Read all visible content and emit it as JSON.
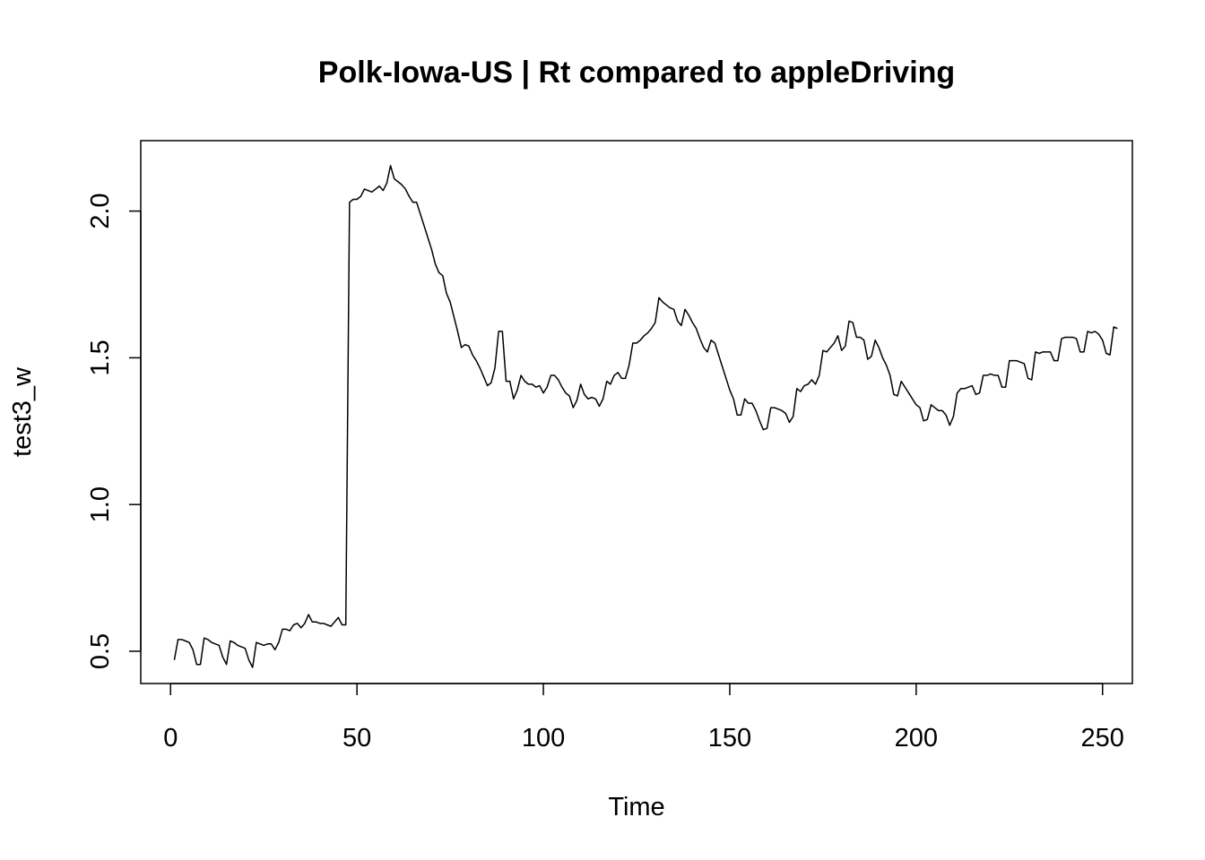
{
  "chart_data": {
    "type": "line",
    "title": "Polk-Iowa-US | Rt compared to appleDriving",
    "xlabel": "Time",
    "ylabel": "test3_w",
    "xlim": [
      -8,
      258
    ],
    "ylim": [
      0.39,
      2.24
    ],
    "x_ticks": [
      0,
      50,
      100,
      150,
      200,
      250
    ],
    "y_ticks": [
      0.5,
      1.0,
      1.5,
      2.0
    ],
    "x_tick_labels": [
      "0",
      "50",
      "100",
      "150",
      "200",
      "250"
    ],
    "y_tick_labels": [
      "0.5",
      "1.0",
      "1.5",
      "2.0"
    ],
    "grid": false,
    "line_color": "#000000",
    "series": [
      {
        "x_start": 1,
        "values": [
          0.47,
          0.54,
          0.54,
          0.535,
          0.53,
          0.505,
          0.455,
          0.455,
          0.545,
          0.54,
          0.53,
          0.525,
          0.52,
          0.48,
          0.455,
          0.535,
          0.53,
          0.52,
          0.515,
          0.51,
          0.47,
          0.445,
          0.53,
          0.525,
          0.52,
          0.525,
          0.525,
          0.505,
          0.53,
          0.575,
          0.575,
          0.57,
          0.59,
          0.595,
          0.58,
          0.595,
          0.625,
          0.6,
          0.6,
          0.595,
          0.595,
          0.59,
          0.585,
          0.6,
          0.615,
          0.59,
          0.59,
          2.03,
          2.04,
          2.04,
          2.05,
          2.075,
          2.07,
          2.065,
          2.075,
          2.085,
          2.07,
          2.095,
          2.155,
          2.11,
          2.1,
          2.09,
          2.075,
          2.05,
          2.03,
          2.03,
          1.99,
          1.95,
          1.91,
          1.87,
          1.82,
          1.79,
          1.78,
          1.72,
          1.69,
          1.64,
          1.59,
          1.535,
          1.545,
          1.54,
          1.51,
          1.49,
          1.465,
          1.435,
          1.405,
          1.415,
          1.465,
          1.59,
          1.59,
          1.42,
          1.42,
          1.36,
          1.39,
          1.44,
          1.42,
          1.41,
          1.41,
          1.4,
          1.405,
          1.38,
          1.4,
          1.44,
          1.44,
          1.425,
          1.4,
          1.38,
          1.37,
          1.33,
          1.355,
          1.41,
          1.375,
          1.36,
          1.365,
          1.36,
          1.335,
          1.36,
          1.42,
          1.41,
          1.44,
          1.45,
          1.43,
          1.43,
          1.475,
          1.55,
          1.55,
          1.56,
          1.575,
          1.585,
          1.6,
          1.62,
          1.705,
          1.69,
          1.68,
          1.67,
          1.665,
          1.625,
          1.61,
          1.665,
          1.645,
          1.62,
          1.6,
          1.565,
          1.535,
          1.52,
          1.56,
          1.55,
          1.51,
          1.47,
          1.43,
          1.39,
          1.36,
          1.305,
          1.305,
          1.36,
          1.345,
          1.345,
          1.32,
          1.285,
          1.255,
          1.26,
          1.33,
          1.33,
          1.325,
          1.32,
          1.31,
          1.28,
          1.3,
          1.395,
          1.385,
          1.405,
          1.41,
          1.425,
          1.41,
          1.44,
          1.525,
          1.52,
          1.535,
          1.55,
          1.575,
          1.525,
          1.54,
          1.625,
          1.62,
          1.57,
          1.57,
          1.56,
          1.495,
          1.505,
          1.56,
          1.535,
          1.5,
          1.475,
          1.44,
          1.375,
          1.37,
          1.42,
          1.4,
          1.38,
          1.36,
          1.34,
          1.33,
          1.285,
          1.29,
          1.34,
          1.33,
          1.32,
          1.32,
          1.305,
          1.27,
          1.3,
          1.38,
          1.395,
          1.395,
          1.4,
          1.405,
          1.375,
          1.38,
          1.44,
          1.44,
          1.445,
          1.44,
          1.44,
          1.4,
          1.4,
          1.49,
          1.49,
          1.49,
          1.485,
          1.48,
          1.43,
          1.425,
          1.52,
          1.515,
          1.52,
          1.52,
          1.52,
          1.49,
          1.49,
          1.565,
          1.57,
          1.57,
          1.57,
          1.565,
          1.52,
          1.52,
          1.59,
          1.585,
          1.59,
          1.58,
          1.56,
          1.515,
          1.51,
          1.605,
          1.6
        ]
      }
    ]
  }
}
